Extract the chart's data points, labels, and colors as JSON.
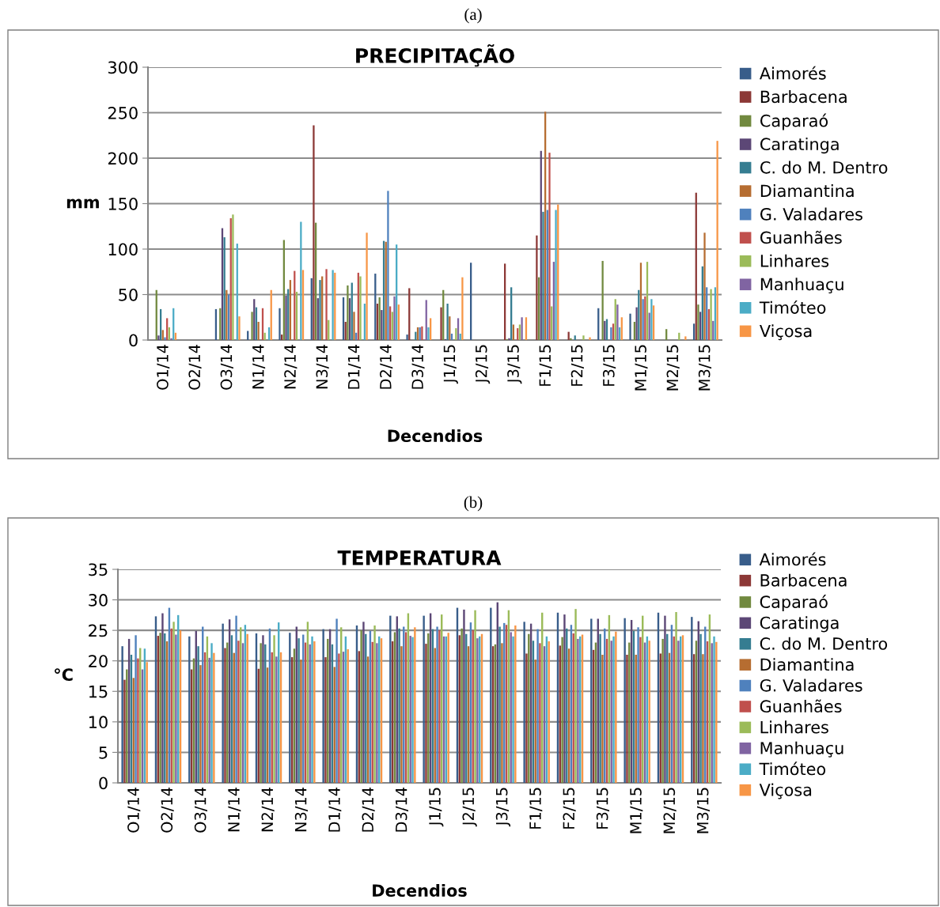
{
  "chart_data": [
    {
      "type": "bar",
      "title": "PRECIPITAÇÃO",
      "xlabel": "Decendios",
      "ylabel": "mm",
      "annotations": [
        "(a)"
      ],
      "categories": [
        "O1/14",
        "O2/14",
        "O3/14",
        "N1/14",
        "N2/14",
        "N3/14",
        "D1/14",
        "D2/14",
        "D3/14",
        "J1/15",
        "J2/15",
        "J3/15",
        "F1/15",
        "F2/15",
        "F3/15",
        "M1/15",
        "M2/15",
        "M3/15"
      ],
      "ylim": [
        0,
        300
      ],
      "yticks": [
        0,
        50,
        100,
        150,
        200,
        250,
        300
      ],
      "grid": "y",
      "legend": "right",
      "series": [
        {
          "name": "Aimorés",
          "color": "#385d8a",
          "values": [
            0,
            0,
            34,
            10,
            35,
            68,
            47,
            73,
            6,
            0,
            85,
            0,
            0,
            0,
            35,
            29,
            0,
            18
          ]
        },
        {
          "name": "Barbacena",
          "color": "#8c3836",
          "values": [
            0,
            0,
            0,
            0,
            6,
            236,
            20,
            40,
            57,
            36,
            0,
            84,
            115,
            9,
            0,
            0,
            0,
            162
          ]
        },
        {
          "name": "Caparaó",
          "color": "#71893f",
          "values": [
            55,
            0,
            35,
            31,
            110,
            129,
            60,
            47,
            0,
            55,
            0,
            1,
            69,
            2,
            87,
            20,
            12,
            39
          ]
        },
        {
          "name": "Caratinga",
          "color": "#5c4776",
          "values": [
            5,
            0,
            123,
            45,
            49,
            46,
            46,
            33,
            0,
            1,
            0,
            2,
            208,
            0,
            21,
            36,
            0,
            31
          ]
        },
        {
          "name": "C. do M. Dentro",
          "color": "#357d91",
          "values": [
            34,
            0,
            113,
            36,
            56,
            66,
            63,
            109,
            9,
            40,
            0,
            58,
            141,
            5,
            23,
            55,
            0,
            81
          ]
        },
        {
          "name": "Diamantina",
          "color": "#b66d31",
          "values": [
            11,
            0,
            55,
            20,
            66,
            70,
            31,
            108,
            14,
            26,
            0,
            17,
            251,
            0,
            0,
            85,
            0,
            118
          ]
        },
        {
          "name": "G. Valadares",
          "color": "#4f81bd",
          "values": [
            3,
            0,
            50,
            0,
            0,
            0,
            8,
            164,
            14,
            7,
            0,
            0,
            143,
            0,
            14,
            45,
            0,
            58
          ]
        },
        {
          "name": "Guanhães",
          "color": "#c0504d",
          "values": [
            24,
            0,
            134,
            35,
            76,
            78,
            74,
            37,
            15,
            0,
            0,
            13,
            206,
            0,
            18,
            48,
            0,
            34
          ]
        },
        {
          "name": "Linhares",
          "color": "#9bbb59",
          "values": [
            14,
            0,
            138,
            8,
            53,
            22,
            70,
            31,
            0,
            13,
            0,
            17,
            37,
            5,
            45,
            86,
            8,
            56
          ]
        },
        {
          "name": "Manhuaçu",
          "color": "#8064a2",
          "values": [
            2,
            0,
            0,
            0,
            0,
            0,
            0,
            48,
            44,
            24,
            0,
            25,
            86,
            0,
            39,
            30,
            0,
            21
          ]
        },
        {
          "name": "Timóteo",
          "color": "#4bacc6",
          "values": [
            35,
            0,
            106,
            14,
            130,
            77,
            40,
            105,
            14,
            7,
            0,
            0,
            143,
            0,
            14,
            45,
            0,
            58
          ]
        },
        {
          "name": "Viçosa",
          "color": "#f79646",
          "values": [
            8,
            0,
            26,
            55,
            77,
            74,
            118,
            39,
            24,
            69,
            0,
            25,
            149,
            3,
            25,
            38,
            4,
            219
          ]
        }
      ]
    },
    {
      "type": "bar",
      "title": "TEMPERATURA",
      "xlabel": "Decendios",
      "ylabel": "°C",
      "annotations": [
        "(b)"
      ],
      "categories": [
        "O1/14",
        "O2/14",
        "O3/14",
        "N1/14",
        "N2/14",
        "N3/14",
        "D1/14",
        "D2/14",
        "D3/14",
        "J1/15",
        "J2/15",
        "J3/15",
        "F1/15",
        "F2/15",
        "F3/15",
        "M1/15",
        "M2/15",
        "M3/15"
      ],
      "ylim": [
        0,
        35
      ],
      "yticks": [
        0,
        5,
        10,
        15,
        20,
        25,
        30,
        35
      ],
      "grid": "y",
      "legend": "right",
      "series": [
        {
          "name": "Aimorés",
          "color": "#385d8a",
          "values": [
            22.4,
            27.3,
            24.0,
            26.1,
            24.5,
            24.6,
            25.2,
            25.8,
            27.4,
            27.4,
            28.7,
            28.7,
            26.4,
            27.9,
            26.9,
            27.0,
            27.9,
            27.2
          ]
        },
        {
          "name": "Barbacena",
          "color": "#8c3836",
          "values": [
            16.9,
            24.1,
            18.6,
            22.1,
            18.7,
            20.6,
            20.6,
            21.6,
            23.2,
            22.8,
            24.2,
            22.4,
            21.2,
            22.5,
            21.8,
            21.0,
            21.2,
            21.1
          ]
        },
        {
          "name": "Caparaó",
          "color": "#71893f",
          "values": [
            18.6,
            24.6,
            20.4,
            23.0,
            22.9,
            22.0,
            23.6,
            25.0,
            24.7,
            24.5,
            25.3,
            22.7,
            24.4,
            23.9,
            23.0,
            23.0,
            23.6,
            23.3
          ]
        },
        {
          "name": "Caratinga",
          "color": "#5c4776",
          "values": [
            23.6,
            27.8,
            24.9,
            26.8,
            24.2,
            25.6,
            25.2,
            26.4,
            27.3,
            27.8,
            28.4,
            29.6,
            26.1,
            27.6,
            26.9,
            26.7,
            27.4,
            26.5
          ]
        },
        {
          "name": "C. do M. Dentro",
          "color": "#357d91",
          "values": [
            21.0,
            24.5,
            22.4,
            24.2,
            22.7,
            23.7,
            22.7,
            24.4,
            25.3,
            25.2,
            24.4,
            25.6,
            23.3,
            25.3,
            24.4,
            24.9,
            24.4,
            24.4
          ]
        },
        {
          "name": "Diamantina",
          "color": "#b66d31",
          "values": [
            17.2,
            23.2,
            19.3,
            21.3,
            18.9,
            20.2,
            19.0,
            20.7,
            22.4,
            22.1,
            22.4,
            22.9,
            20.2,
            22.0,
            21.0,
            21.0,
            21.3,
            21.1
          ]
        },
        {
          "name": "G. Valadares",
          "color": "#4f81bd",
          "values": [
            24.2,
            28.7,
            25.6,
            27.4,
            25.3,
            24.3,
            26.9,
            24.9,
            25.6,
            25.6,
            26.3,
            26.2,
            25.2,
            25.9,
            25.3,
            25.5,
            25.9,
            25.6
          ]
        },
        {
          "name": "Guanhães",
          "color": "#c0504d",
          "values": [
            20.4,
            25.3,
            21.4,
            23.3,
            21.4,
            23.0,
            21.2,
            23.1,
            24.7,
            25.0,
            25.0,
            25.9,
            22.9,
            24.5,
            23.6,
            23.9,
            24.0,
            23.2
          ]
        },
        {
          "name": "Linhares",
          "color": "#9bbb59",
          "values": [
            22.1,
            26.4,
            24.0,
            25.5,
            24.2,
            26.4,
            25.5,
            25.8,
            27.8,
            27.6,
            28.3,
            28.3,
            27.9,
            28.5,
            27.5,
            27.4,
            28.0,
            27.6
          ]
        },
        {
          "name": "Manhuaçu",
          "color": "#8064a2",
          "values": [
            18.6,
            24.3,
            20.5,
            22.9,
            20.7,
            22.7,
            21.5,
            22.9,
            24.1,
            24.0,
            23.7,
            24.7,
            22.4,
            23.6,
            23.3,
            23.0,
            23.3,
            22.9
          ]
        },
        {
          "name": "Timóteo",
          "color": "#4bacc6",
          "values": [
            22.0,
            27.5,
            22.9,
            25.9,
            26.3,
            24.0,
            24.0,
            24.0,
            23.9,
            24.0,
            24.0,
            24.0,
            24.0,
            24.0,
            24.0,
            24.0,
            24.0,
            24.0
          ]
        },
        {
          "name": "Viçosa",
          "color": "#f79646",
          "values": [
            19.8,
            25.0,
            21.3,
            24.4,
            21.4,
            23.2,
            21.9,
            23.7,
            25.5,
            24.6,
            24.4,
            25.8,
            23.2,
            24.3,
            24.8,
            23.3,
            24.2,
            23.1
          ]
        }
      ]
    }
  ]
}
